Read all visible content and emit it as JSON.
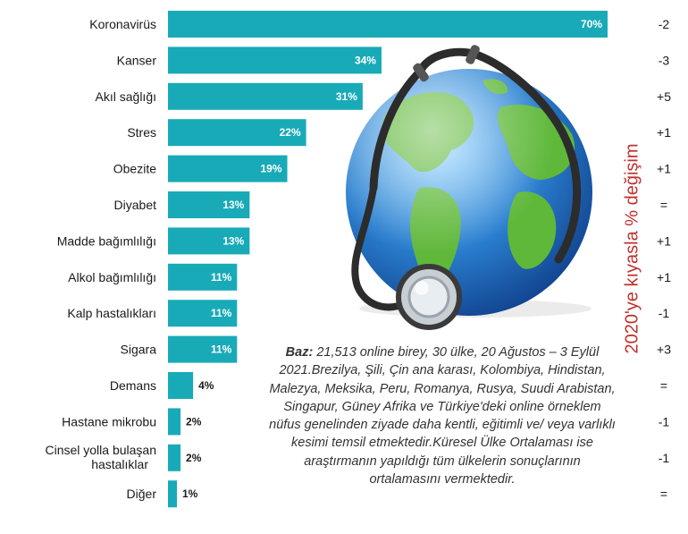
{
  "chart_data": {
    "type": "bar",
    "orientation": "horizontal",
    "categories": [
      "Koronavirüs",
      "Kanser",
      "Akıl sağlığı",
      "Stres",
      "Obezite",
      "Diyabet",
      "Madde bağımlılığı",
      "Alkol bağımlılığı",
      "Kalp hastalıkları",
      "Sigara",
      "Demans",
      "Hastane mikrobu",
      "Cinsel yolla bulaşan hastalıklar",
      "Diğer"
    ],
    "values": [
      70,
      34,
      31,
      22,
      19,
      13,
      13,
      11,
      11,
      11,
      4,
      2,
      2,
      1
    ],
    "value_labels": [
      "70%",
      "34%",
      "31%",
      "22%",
      "19%",
      "13%",
      "13%",
      "11%",
      "11%",
      "11%",
      "4%",
      "2%",
      "2%",
      "1%"
    ],
    "change_labels": [
      "-2",
      "-3",
      "+5",
      "+1",
      "+1",
      "=",
      "+1",
      "+1",
      "-1",
      "+3",
      "=",
      "-1",
      "-1",
      "="
    ],
    "change_axis_title": "2020'ye kıyasla % değişim",
    "xlim": [
      0,
      70
    ],
    "bar_color": "#19aab8",
    "grid": false
  },
  "note": {
    "bold": "Baz:",
    "text": "21,513 online birey, 30 ülke, 20 Ağustos – 3 Eylül 2021.Brezilya, Şili, Çin ana karası, Kolombiya, Hindistan, Malezya, Meksika, Peru, Romanya, Rusya, Suudi Arabistan, Singapur, Güney Afrika ve Türkiye'deki online örneklem nüfus genelinden ziyade daha kentli, eğitimli ve/ veya varlıklı kesimi temsil etmektedir.Küresel Ülke Ortalaması ise araştırmanın yapıldığı tüm ülkelerin sonuçlarının ortalamasını vermektedir."
  },
  "illustration": {
    "icon": "globe-with-stethoscope-icon",
    "ocean_color": "#2a7fcf",
    "land_color": "#5fb83a"
  }
}
